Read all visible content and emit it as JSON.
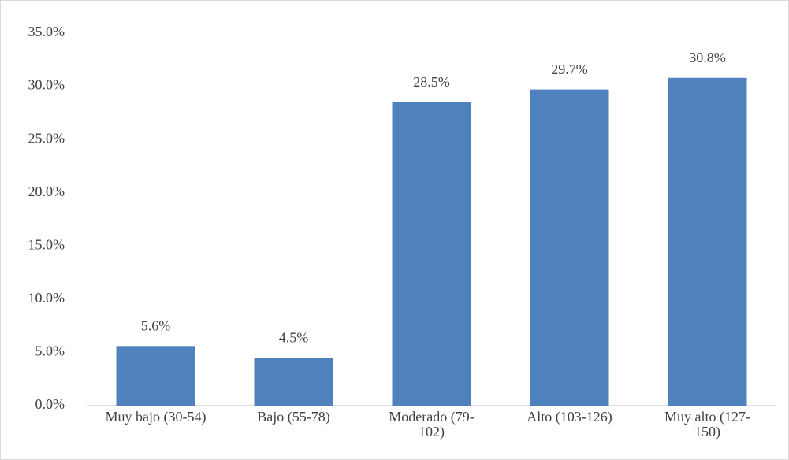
{
  "chart_data": {
    "type": "bar",
    "categories": [
      "Muy bajo (30-54)",
      "Bajo (55-78)",
      "Moderado (79-102)",
      "Alto (103-126)",
      "Muy alto (127-150)"
    ],
    "values": [
      5.6,
      4.5,
      28.5,
      29.7,
      30.8
    ],
    "value_labels": [
      "5.6%",
      "4.5%",
      "28.5%",
      "29.7%",
      "30.8%"
    ],
    "color": "#4f81bd",
    "ylim": [
      0,
      35
    ],
    "yticks": [
      {
        "value": 0,
        "label": "0.0%"
      },
      {
        "value": 5,
        "label": "5.0%"
      },
      {
        "value": 10,
        "label": "10.0%"
      },
      {
        "value": 15,
        "label": "15.0%"
      },
      {
        "value": 20,
        "label": "20.0%"
      },
      {
        "value": 25,
        "label": "25.0%"
      },
      {
        "value": 30,
        "label": "30.0%"
      },
      {
        "value": 35,
        "label": "35.0%"
      }
    ],
    "grid": false
  }
}
